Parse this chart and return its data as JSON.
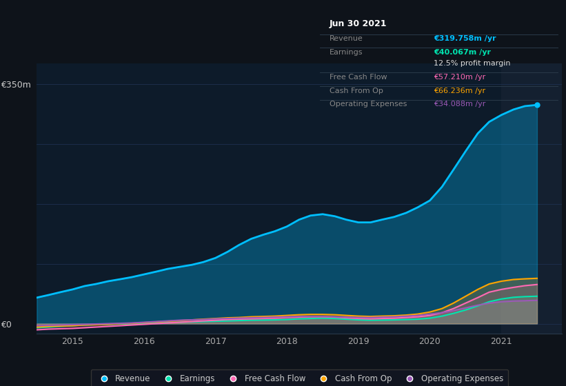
{
  "bg_color": "#0e131a",
  "plot_bg_color": "#0d1b2a",
  "grid_color": "#1e3050",
  "ylim": [
    -15000000,
    380000000
  ],
  "xlim": [
    2014.5,
    2021.85
  ],
  "xticks": [
    2015,
    2016,
    2017,
    2018,
    2019,
    2020,
    2021
  ],
  "series": {
    "Revenue": {
      "color": "#00bfff",
      "fill_color": "#00bfff",
      "fill_alpha": 0.3,
      "linewidth": 2.0,
      "legend_color": "#00bfff"
    },
    "Earnings": {
      "color": "#00e5b0",
      "fill_color": "#00e5b0",
      "fill_alpha": 0.2,
      "linewidth": 1.5,
      "legend_color": "#00e5b0"
    },
    "Free Cash Flow": {
      "color": "#ff69b4",
      "fill_color": "#ff69b4",
      "fill_alpha": 0.18,
      "linewidth": 1.5,
      "legend_color": "#ff69b4"
    },
    "Cash From Op": {
      "color": "#ffa500",
      "fill_color": "#ffa500",
      "fill_alpha": 0.2,
      "linewidth": 1.5,
      "legend_color": "#ffa500"
    },
    "Operating Expenses": {
      "color": "#9b59b6",
      "fill_color": "#9b59b6",
      "fill_alpha": 0.3,
      "linewidth": 1.5,
      "legend_color": "#9b59b6"
    }
  },
  "highlight_color": "#142030",
  "data_x": [
    2014.5,
    2014.67,
    2014.83,
    2015.0,
    2015.17,
    2015.33,
    2015.5,
    2015.67,
    2015.83,
    2016.0,
    2016.17,
    2016.33,
    2016.5,
    2016.67,
    2016.83,
    2017.0,
    2017.17,
    2017.33,
    2017.5,
    2017.67,
    2017.83,
    2018.0,
    2018.17,
    2018.33,
    2018.5,
    2018.67,
    2018.83,
    2019.0,
    2019.17,
    2019.33,
    2019.5,
    2019.67,
    2019.83,
    2020.0,
    2020.17,
    2020.33,
    2020.5,
    2020.67,
    2020.83,
    2021.0,
    2021.17,
    2021.33,
    2021.5
  ],
  "revenue": [
    38000000,
    42000000,
    46000000,
    50000000,
    55000000,
    58000000,
    62000000,
    65000000,
    68000000,
    72000000,
    76000000,
    80000000,
    83000000,
    86000000,
    90000000,
    96000000,
    105000000,
    115000000,
    124000000,
    130000000,
    135000000,
    142000000,
    152000000,
    158000000,
    160000000,
    157000000,
    152000000,
    148000000,
    148000000,
    152000000,
    156000000,
    162000000,
    170000000,
    180000000,
    200000000,
    225000000,
    252000000,
    278000000,
    295000000,
    305000000,
    313000000,
    318000000,
    319758000
  ],
  "earnings": [
    -6000000,
    -5000000,
    -4000000,
    -3000000,
    -2000000,
    -1500000,
    -1000000,
    -500000,
    0,
    500000,
    1000000,
    1500000,
    2000000,
    2500000,
    3000000,
    3500000,
    4000000,
    4500000,
    5000000,
    5200000,
    5500000,
    6000000,
    7000000,
    7500000,
    8000000,
    7500000,
    6500000,
    5500000,
    5000000,
    5200000,
    5500000,
    6000000,
    6500000,
    8000000,
    11000000,
    15000000,
    20000000,
    26000000,
    32000000,
    36000000,
    38500000,
    39500000,
    40067000
  ],
  "free_cash_flow": [
    -9000000,
    -8000000,
    -7500000,
    -7000000,
    -6000000,
    -5000000,
    -4000000,
    -3000000,
    -2000000,
    -1000000,
    0,
    1000000,
    2000000,
    3000000,
    4000000,
    5000000,
    6000000,
    6500000,
    7000000,
    7500000,
    8000000,
    9000000,
    9500000,
    10000000,
    10000000,
    9500000,
    8500000,
    7500000,
    7000000,
    7500000,
    8000000,
    9000000,
    10000000,
    12000000,
    16000000,
    22000000,
    30000000,
    38000000,
    46000000,
    50000000,
    53000000,
    55500000,
    57210000
  ],
  "cash_from_op": [
    -5000000,
    -4000000,
    -3500000,
    -3000000,
    -2000000,
    -1500000,
    -1000000,
    0,
    500000,
    1500000,
    2500000,
    3500000,
    4500000,
    5500000,
    6500000,
    7500000,
    8500000,
    9000000,
    10000000,
    10500000,
    11000000,
    12000000,
    13000000,
    13500000,
    13500000,
    13000000,
    12000000,
    11000000,
    10500000,
    11000000,
    11500000,
    12500000,
    14000000,
    17000000,
    22000000,
    30000000,
    40000000,
    50000000,
    58000000,
    62000000,
    64500000,
    65500000,
    66236000
  ],
  "operating_expenses": [
    -3000000,
    -2500000,
    -2000000,
    -1500000,
    -1000000,
    -500000,
    0,
    500000,
    1000000,
    2000000,
    3000000,
    4000000,
    5000000,
    5500000,
    6000000,
    7000000,
    7500000,
    8000000,
    8500000,
    9000000,
    9500000,
    10000000,
    10500000,
    10500000,
    10500000,
    10000000,
    9500000,
    9000000,
    9000000,
    9500000,
    10000000,
    11000000,
    12000000,
    14000000,
    16000000,
    19000000,
    23000000,
    27000000,
    30000000,
    32000000,
    33000000,
    33500000,
    34088000
  ],
  "tooltip": {
    "title": "Jun 30 2021",
    "rows": [
      {
        "label": "Revenue",
        "value": "€319.758m /yr",
        "lc": "#888888",
        "vc": "#00bfff",
        "bold_val": true,
        "sep_after": false
      },
      {
        "label": "Earnings",
        "value": "€40.067m /yr",
        "lc": "#888888",
        "vc": "#00e5b0",
        "bold_val": true,
        "sep_after": false
      },
      {
        "label": "",
        "value": "12.5% profit margin",
        "lc": "#888888",
        "vc": "#dddddd",
        "bold_val": false,
        "sep_after": true
      },
      {
        "label": "Free Cash Flow",
        "value": "€57.210m /yr",
        "lc": "#888888",
        "vc": "#ff69b4",
        "bold_val": false,
        "sep_after": false
      },
      {
        "label": "Cash From Op",
        "value": "€66.236m /yr",
        "lc": "#888888",
        "vc": "#ffa500",
        "bold_val": false,
        "sep_after": false
      },
      {
        "label": "Operating Expenses",
        "value": "€34.088m /yr",
        "lc": "#888888",
        "vc": "#9b59b6",
        "bold_val": false,
        "sep_after": false
      }
    ]
  },
  "legend": [
    {
      "label": "Revenue",
      "color": "#00bfff"
    },
    {
      "label": "Earnings",
      "color": "#00e5b0"
    },
    {
      "label": "Free Cash Flow",
      "color": "#ff69b4"
    },
    {
      "label": "Cash From Op",
      "color": "#ffa500"
    },
    {
      "label": "Operating Expenses",
      "color": "#9b59b6"
    }
  ]
}
